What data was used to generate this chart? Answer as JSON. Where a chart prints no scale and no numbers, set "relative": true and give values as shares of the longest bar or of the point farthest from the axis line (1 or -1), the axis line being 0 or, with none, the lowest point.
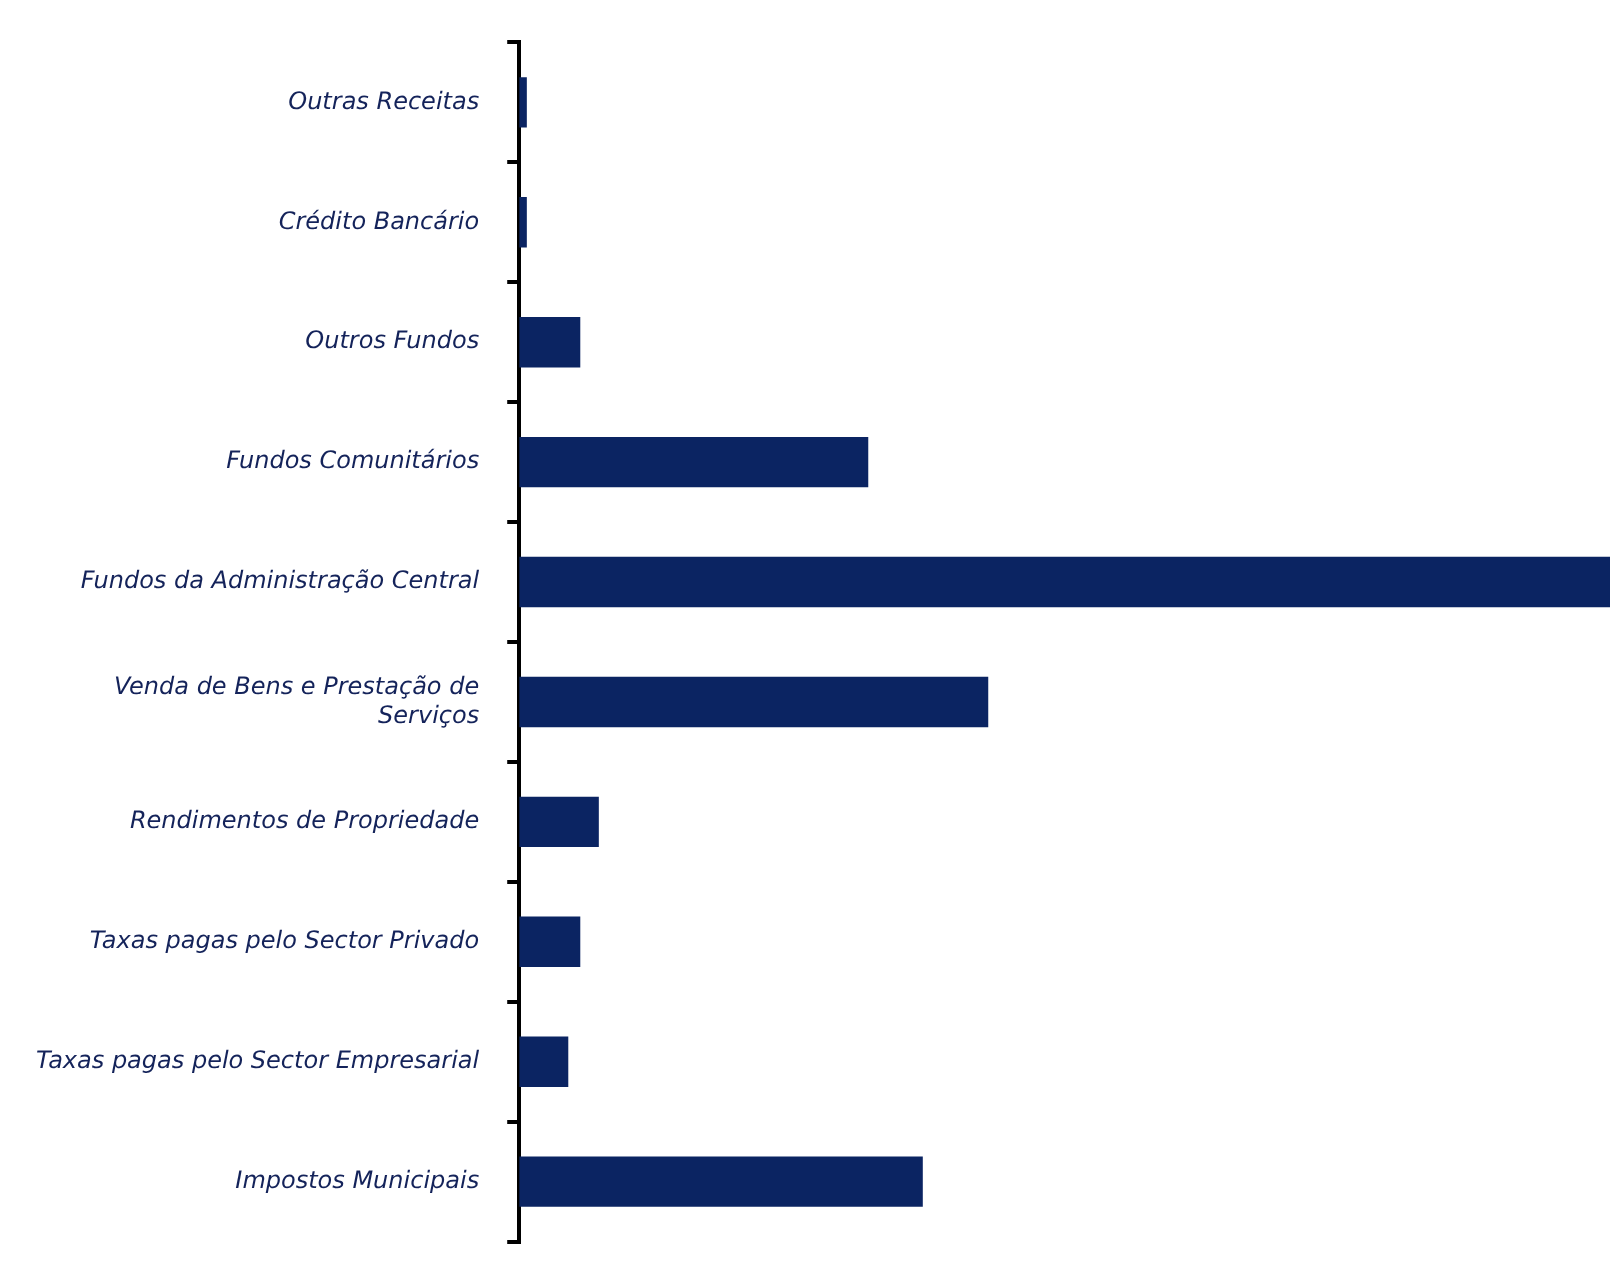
{
  "chart_data": {
    "type": "bar",
    "orientation": "horizontal",
    "relative": true,
    "color": "#0b2462",
    "categories": [
      "Outras Receitas",
      "Crédito Bancário",
      "Outros Fundos",
      "Fundos Comunitários",
      "Fundos da Administração Central",
      "Venda de Bens e Prestação de Serviços",
      "Rendimentos de Propriedade",
      "Taxas pagas pelo Sector Privado",
      "Taxas pagas pelo Sector Empresarial",
      "Impostos Municipais"
    ],
    "values": [
      0.007,
      0.007,
      0.056,
      0.32,
      1,
      0.43,
      0.073,
      0.056,
      0.045,
      0.37
    ],
    "legend": false
  }
}
